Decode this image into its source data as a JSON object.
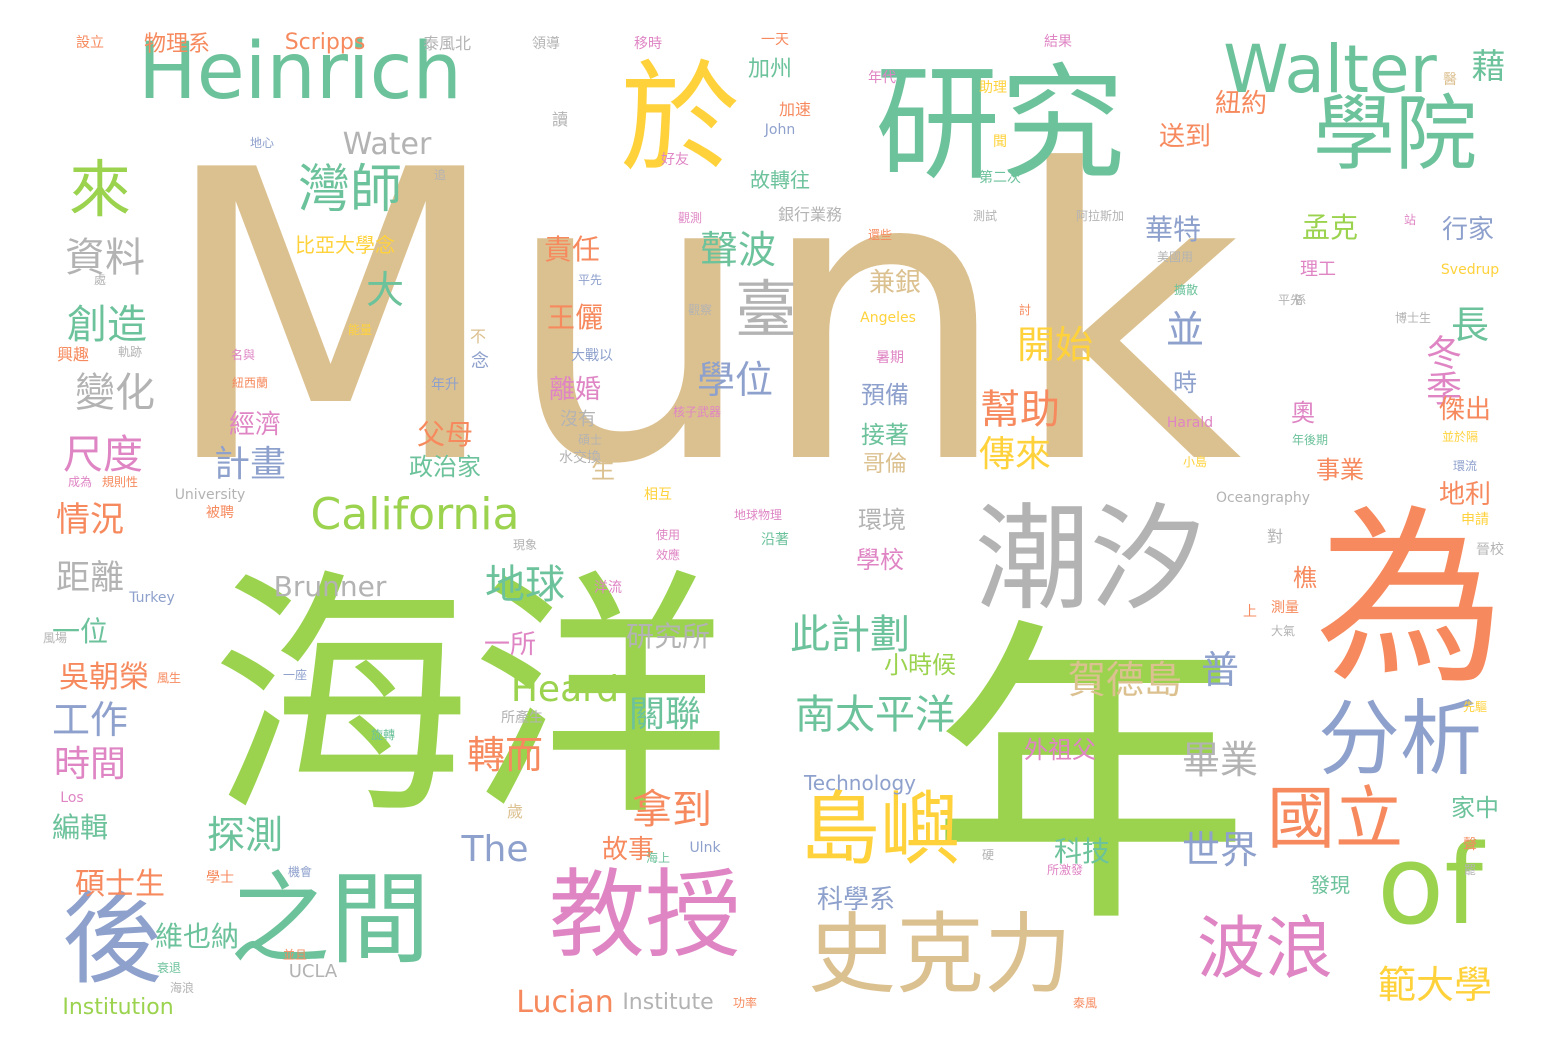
{
  "palette": {
    "tan": "#dcc190",
    "green": "#9bd34f",
    "teal": "#6cc29b",
    "gold": "#ffd23b",
    "salmon": "#f68a5e",
    "grey": "#b3b3b3",
    "blue": "#8ea0cc",
    "pink": "#df85c4"
  },
  "words": [
    {
      "text": "Munk",
      "color": "tan"
    },
    {
      "text": "海洋",
      "color": "green"
    },
    {
      "text": "年",
      "color": "green"
    },
    {
      "text": "研究",
      "color": "teal"
    },
    {
      "text": "於",
      "color": "gold"
    },
    {
      "text": "Heinrich",
      "color": "teal"
    },
    {
      "text": "為",
      "color": "salmon"
    },
    {
      "text": "潮汐",
      "color": "grey"
    },
    {
      "text": "學院",
      "color": "teal"
    },
    {
      "text": "Walter",
      "color": "teal"
    },
    {
      "text": "教授",
      "color": "pink"
    },
    {
      "text": "之間",
      "color": "teal"
    },
    {
      "text": "史克力",
      "color": "tan"
    },
    {
      "text": "of",
      "color": "green"
    },
    {
      "text": "後",
      "color": "blue"
    },
    {
      "text": "分析",
      "color": "blue"
    },
    {
      "text": "島嶼",
      "color": "gold"
    },
    {
      "text": "波浪",
      "color": "pink"
    },
    {
      "text": "國立",
      "color": "salmon"
    },
    {
      "text": "來",
      "color": "green"
    },
    {
      "text": "灣師",
      "color": "teal"
    },
    {
      "text": "California",
      "color": "green"
    },
    {
      "text": "臺",
      "color": "grey"
    },
    {
      "text": "資料",
      "color": "grey"
    },
    {
      "text": "創造",
      "color": "teal"
    },
    {
      "text": "變化",
      "color": "grey"
    },
    {
      "text": "尺度",
      "color": "pink"
    },
    {
      "text": "大",
      "color": "teal"
    },
    {
      "text": "聲波",
      "color": "teal"
    },
    {
      "text": "學位",
      "color": "blue"
    },
    {
      "text": "長",
      "color": "teal"
    },
    {
      "text": "冬季",
      "color": "pink"
    },
    {
      "text": "開始",
      "color": "gold"
    },
    {
      "text": "並",
      "color": "blue"
    },
    {
      "text": "幫助",
      "color": "salmon"
    },
    {
      "text": "傳來",
      "color": "gold"
    },
    {
      "text": "計畫",
      "color": "blue"
    },
    {
      "text": "地球",
      "color": "teal"
    },
    {
      "text": "此計劃",
      "color": "teal"
    },
    {
      "text": "賀德島",
      "color": "tan"
    },
    {
      "text": "普",
      "color": "blue"
    },
    {
      "text": "南太平洋",
      "color": "teal"
    },
    {
      "text": "畢業",
      "color": "grey"
    },
    {
      "text": "世界",
      "color": "blue"
    },
    {
      "text": "範大學",
      "color": "gold"
    },
    {
      "text": "拿到",
      "color": "salmon"
    },
    {
      "text": "探測",
      "color": "teal"
    },
    {
      "text": "轉而",
      "color": "salmon"
    },
    {
      "text": "關聯",
      "color": "teal"
    },
    {
      "text": "Heard",
      "color": "green"
    },
    {
      "text": "The",
      "color": "blue"
    },
    {
      "text": "工作",
      "color": "blue"
    },
    {
      "text": "時間",
      "color": "pink"
    },
    {
      "text": "情況",
      "color": "salmon"
    },
    {
      "text": "距離",
      "color": "grey"
    },
    {
      "text": "吳朝榮",
      "color": "salmon"
    },
    {
      "text": "一位",
      "color": "teal"
    },
    {
      "text": "碩士生",
      "color": "salmon"
    },
    {
      "text": "維也納",
      "color": "teal"
    },
    {
      "text": "編輯",
      "color": "teal"
    },
    {
      "text": "Lucian",
      "color": "salmon"
    },
    {
      "text": "Institution",
      "color": "green"
    },
    {
      "text": "Institute",
      "color": "grey"
    },
    {
      "text": "UCLA",
      "color": "grey"
    },
    {
      "text": "科學系",
      "color": "blue"
    },
    {
      "text": "故事",
      "color": "salmon"
    },
    {
      "text": "科技",
      "color": "teal"
    },
    {
      "text": "研究所",
      "color": "grey"
    },
    {
      "text": "一所",
      "color": "pink"
    },
    {
      "text": "Brunner",
      "color": "grey"
    },
    {
      "text": "Water",
      "color": "grey"
    },
    {
      "text": "Scripps",
      "color": "salmon"
    },
    {
      "text": "物理系",
      "color": "salmon"
    },
    {
      "text": "泰風北",
      "color": "grey"
    },
    {
      "text": "藉",
      "color": "teal"
    },
    {
      "text": "紐約",
      "color": "salmon"
    },
    {
      "text": "送到",
      "color": "salmon"
    },
    {
      "text": "華特",
      "color": "blue"
    },
    {
      "text": "孟克",
      "color": "green"
    },
    {
      "text": "行家",
      "color": "blue"
    },
    {
      "text": "銀行業務",
      "color": "grey"
    },
    {
      "text": "責任",
      "color": "salmon"
    },
    {
      "text": "王儷",
      "color": "salmon"
    },
    {
      "text": "兼銀",
      "color": "tan"
    },
    {
      "text": "預備",
      "color": "blue"
    },
    {
      "text": "接著",
      "color": "teal"
    },
    {
      "text": "哥倫",
      "color": "tan"
    },
    {
      "text": "離婚",
      "color": "pink"
    },
    {
      "text": "父母",
      "color": "salmon"
    },
    {
      "text": "政治家",
      "color": "teal"
    },
    {
      "text": "經濟",
      "color": "pink"
    },
    {
      "text": "環境",
      "color": "grey"
    },
    {
      "text": "學校",
      "color": "pink"
    },
    {
      "text": "小時候",
      "color": "green"
    },
    {
      "text": "外祖父",
      "color": "pink"
    },
    {
      "text": "傑出",
      "color": "salmon"
    },
    {
      "text": "地利",
      "color": "salmon"
    },
    {
      "text": "事業",
      "color": "salmon"
    },
    {
      "text": "奧",
      "color": "pink"
    },
    {
      "text": "時",
      "color": "blue"
    },
    {
      "text": "樵",
      "color": "salmon"
    },
    {
      "text": "家中",
      "color": "teal"
    },
    {
      "text": "發現",
      "color": "teal"
    },
    {
      "text": "加州",
      "color": "teal"
    },
    {
      "text": "加速",
      "color": "salmon"
    },
    {
      "text": "故轉往",
      "color": "teal"
    },
    {
      "text": "比亞大學念",
      "color": "gold"
    },
    {
      "text": "生",
      "color": "tan"
    },
    {
      "text": "Technology",
      "color": "blue"
    },
    {
      "text": "理工",
      "color": "pink"
    },
    {
      "text": "Svedrup",
      "color": "gold"
    },
    {
      "text": "Oceangraphy",
      "color": "grey"
    },
    {
      "text": "University",
      "color": "grey"
    },
    {
      "text": "Turkey",
      "color": "blue"
    },
    {
      "text": "Angeles",
      "color": "gold"
    },
    {
      "text": "Harald",
      "color": "pink"
    },
    {
      "text": "John",
      "color": "blue"
    },
    {
      "text": "Ulnk",
      "color": "blue"
    },
    {
      "text": "Los",
      "color": "pink"
    },
    {
      "text": "設立",
      "color": "salmon"
    },
    {
      "text": "領導",
      "color": "grey"
    },
    {
      "text": "移時",
      "color": "pink"
    },
    {
      "text": "一天",
      "color": "salmon"
    },
    {
      "text": "結果",
      "color": "pink"
    },
    {
      "text": "年代",
      "color": "pink"
    },
    {
      "text": "助理",
      "color": "gold"
    },
    {
      "text": "地心",
      "color": "blue"
    },
    {
      "text": "讀",
      "color": "grey"
    },
    {
      "text": "好友",
      "color": "pink"
    },
    {
      "text": "第二次",
      "color": "teal"
    },
    {
      "text": "測試",
      "color": "grey"
    },
    {
      "text": "阿拉斯加",
      "color": "grey"
    },
    {
      "text": "美國用",
      "color": "grey"
    },
    {
      "text": "觀察",
      "color": "grey"
    },
    {
      "text": "大戰以",
      "color": "blue"
    },
    {
      "text": "沒有",
      "color": "grey"
    },
    {
      "text": "水交換",
      "color": "grey"
    },
    {
      "text": "核子武器",
      "color": "pink"
    },
    {
      "text": "年後期",
      "color": "teal"
    },
    {
      "text": "並於隔",
      "color": "gold"
    },
    {
      "text": "環流",
      "color": "blue"
    },
    {
      "text": "小島",
      "color": "gold"
    },
    {
      "text": "相互",
      "color": "gold"
    },
    {
      "text": "地球物理",
      "color": "pink"
    },
    {
      "text": "沿著",
      "color": "teal"
    },
    {
      "text": "現象",
      "color": "grey"
    },
    {
      "text": "效應",
      "color": "pink"
    },
    {
      "text": "使用",
      "color": "pink"
    },
    {
      "text": "被聘",
      "color": "salmon"
    },
    {
      "text": "成為",
      "color": "pink"
    },
    {
      "text": "規則性",
      "color": "salmon"
    },
    {
      "text": "興趣",
      "color": "salmon"
    },
    {
      "text": "軌跡",
      "color": "grey"
    },
    {
      "text": "紐西蘭",
      "color": "salmon"
    },
    {
      "text": "名與",
      "color": "pink"
    },
    {
      "text": "能量",
      "color": "gold"
    },
    {
      "text": "年升",
      "color": "blue"
    },
    {
      "text": "念",
      "color": "blue"
    },
    {
      "text": "不",
      "color": "tan"
    },
    {
      "text": "暑期",
      "color": "pink"
    },
    {
      "text": "所產生",
      "color": "grey"
    },
    {
      "text": "洋流",
      "color": "pink"
    },
    {
      "text": "旋轉",
      "color": "teal"
    },
    {
      "text": "一座",
      "color": "blue"
    },
    {
      "text": "風生",
      "color": "salmon"
    },
    {
      "text": "風場",
      "color": "grey"
    },
    {
      "text": "大氣",
      "color": "grey"
    },
    {
      "text": "測量",
      "color": "salmon"
    },
    {
      "text": "先驅",
      "color": "gold"
    },
    {
      "text": "博士生",
      "color": "grey"
    },
    {
      "text": "海上",
      "color": "teal"
    },
    {
      "text": "所激發",
      "color": "pink"
    },
    {
      "text": "機會",
      "color": "blue"
    },
    {
      "text": "衰退",
      "color": "teal"
    },
    {
      "text": "海浪",
      "color": "grey"
    },
    {
      "text": "並且",
      "color": "salmon"
    },
    {
      "text": "學士",
      "color": "salmon"
    },
    {
      "text": "功率",
      "color": "salmon"
    },
    {
      "text": "泰風",
      "color": "salmon"
    },
    {
      "text": "歲",
      "color": "tan"
    },
    {
      "text": "硬",
      "color": "grey"
    },
    {
      "text": "對",
      "color": "grey"
    },
    {
      "text": "上",
      "color": "salmon"
    },
    {
      "text": "申請",
      "color": "gold"
    },
    {
      "text": "晉校",
      "color": "grey"
    },
    {
      "text": "聞",
      "color": "gold"
    },
    {
      "text": "醫",
      "color": "tan"
    },
    {
      "text": "站",
      "color": "pink"
    },
    {
      "text": "擴散",
      "color": "teal"
    },
    {
      "text": "係",
      "color": "grey"
    },
    {
      "text": "討",
      "color": "salmon"
    },
    {
      "text": "還些",
      "color": "salmon"
    },
    {
      "text": "平先",
      "color": "blue"
    },
    {
      "text": "觀測",
      "color": "pink"
    },
    {
      "text": "追",
      "color": "grey"
    },
    {
      "text": "碩士",
      "color": "grey"
    },
    {
      "text": "聲",
      "color": "salmon"
    },
    {
      "text": "罷",
      "color": "grey"
    },
    {
      "text": "處",
      "color": "grey"
    },
    {
      "text": "平先",
      "color": "grey"
    }
  ]
}
